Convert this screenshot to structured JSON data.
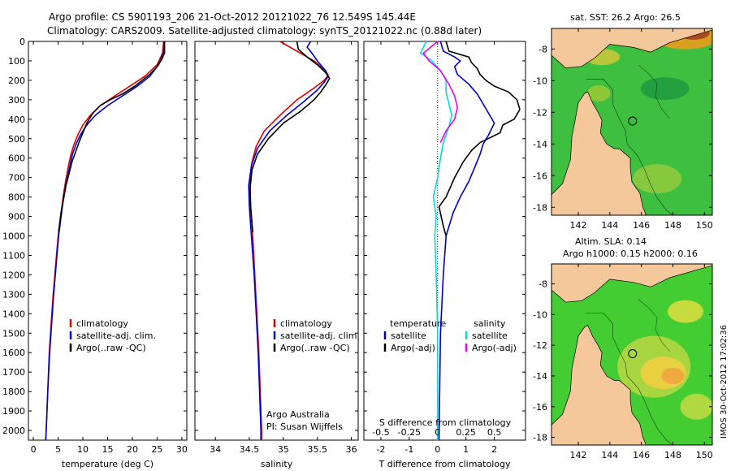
{
  "title_line1": "Argo profile: CS 5901193_206 21-Oct-2012 20121022_76 12.549S 145.44E",
  "title_line2": "Climatology: CARS2009. Satellite-adjusted climatology: synTS_20121022.nc (0.88d later)",
  "timestamp": "IMOS 30-Oct-2012 17:02:36",
  "colors": {
    "climatology": "#dd0000",
    "satellite": "#0000cc",
    "argo": "#000000",
    "sat_salinity": "#00dddd",
    "argo_salinity": "#ee00ee",
    "land": "#f5c89c",
    "sea": "#33cc33"
  },
  "chart_data": [
    {
      "type": "line",
      "id": "temperature",
      "xlabel": "temperature (deg C)",
      "xlim": [
        -1,
        31
      ],
      "xticks": [
        0,
        5,
        10,
        15,
        20,
        25,
        30
      ],
      "ylim": [
        0,
        2050
      ],
      "yticks": [
        0,
        100,
        200,
        300,
        400,
        500,
        600,
        700,
        800,
        900,
        1000,
        1100,
        1200,
        1300,
        1400,
        1500,
        1600,
        1700,
        1800,
        1900,
        2000
      ],
      "legend": [
        "climatology",
        "satellite-adj. clim.",
        "Argo(..raw -QC)"
      ],
      "series": [
        {
          "name": "climatology",
          "color": "#dd0000",
          "points": [
            [
              26.3,
              0
            ],
            [
              26.1,
              60
            ],
            [
              25.0,
              120
            ],
            [
              22.5,
              180
            ],
            [
              19.5,
              230
            ],
            [
              16.5,
              280
            ],
            [
              13.5,
              330
            ],
            [
              11.5,
              380
            ],
            [
              10.0,
              430
            ],
            [
              9.0,
              480
            ],
            [
              8.2,
              530
            ],
            [
              7.6,
              580
            ],
            [
              7.0,
              650
            ],
            [
              6.5,
              720
            ],
            [
              6.0,
              800
            ],
            [
              5.5,
              900
            ],
            [
              5.0,
              1000
            ],
            [
              4.5,
              1150
            ],
            [
              4.0,
              1300
            ],
            [
              3.6,
              1450
            ],
            [
              3.2,
              1600
            ],
            [
              2.9,
              1800
            ],
            [
              2.6,
              2000
            ],
            [
              2.5,
              2050
            ]
          ]
        },
        {
          "name": "satellite-adj. clim.",
          "color": "#0000cc",
          "points": [
            [
              26.4,
              0
            ],
            [
              26.3,
              60
            ],
            [
              25.3,
              120
            ],
            [
              23.5,
              180
            ],
            [
              21.0,
              230
            ],
            [
              18.0,
              280
            ],
            [
              15.0,
              330
            ],
            [
              12.5,
              380
            ],
            [
              10.8,
              430
            ],
            [
              9.5,
              480
            ],
            [
              8.6,
              530
            ],
            [
              7.9,
              580
            ],
            [
              7.3,
              650
            ],
            [
              6.7,
              720
            ],
            [
              6.1,
              800
            ],
            [
              5.6,
              900
            ],
            [
              5.1,
              1000
            ],
            [
              4.6,
              1150
            ],
            [
              4.1,
              1300
            ],
            [
              3.7,
              1450
            ],
            [
              3.3,
              1600
            ],
            [
              2.9,
              1800
            ],
            [
              2.6,
              2000
            ],
            [
              2.5,
              2050
            ]
          ]
        },
        {
          "name": "Argo(..raw -QC)",
          "color": "#000000",
          "points": [
            [
              26.5,
              0
            ],
            [
              26.5,
              60
            ],
            [
              26.3,
              70
            ],
            [
              26.0,
              90
            ],
            [
              25.0,
              130
            ],
            [
              23.5,
              170
            ],
            [
              22.0,
              200
            ],
            [
              20.5,
              230
            ],
            [
              18.0,
              270
            ],
            [
              15.5,
              300
            ],
            [
              13.5,
              330
            ],
            [
              12.0,
              370
            ],
            [
              10.8,
              420
            ],
            [
              10.0,
              470
            ],
            [
              9.2,
              520
            ],
            [
              8.5,
              570
            ],
            [
              7.8,
              620
            ],
            [
              7.2,
              680
            ],
            [
              6.6,
              740
            ],
            [
              6.1,
              810
            ],
            [
              5.6,
              880
            ],
            [
              5.1,
              980
            ]
          ]
        }
      ]
    },
    {
      "type": "line",
      "id": "salinity",
      "xlabel": "salinity",
      "xlim": [
        33.7,
        36.1
      ],
      "xticks": [
        34,
        34.5,
        35,
        35.5,
        36
      ],
      "ylim": [
        0,
        2050
      ],
      "legend": [
        "climatology",
        "satellite-adj. clim.",
        "Argo(..raw -QC)"
      ],
      "annotation": [
        "Argo Australia",
        "PI: Susan Wijffels"
      ],
      "series": [
        {
          "name": "climatology",
          "color": "#dd0000",
          "points": [
            [
              34.95,
              0
            ],
            [
              35.2,
              50
            ],
            [
              35.45,
              100
            ],
            [
              35.62,
              150
            ],
            [
              35.66,
              175
            ],
            [
              35.6,
              200
            ],
            [
              35.45,
              240
            ],
            [
              35.2,
              300
            ],
            [
              34.95,
              380
            ],
            [
              34.72,
              460
            ],
            [
              34.6,
              540
            ],
            [
              34.54,
              620
            ],
            [
              34.51,
              720
            ],
            [
              34.52,
              850
            ],
            [
              34.55,
              1000
            ],
            [
              34.58,
              1200
            ],
            [
              34.61,
              1400
            ],
            [
              34.64,
              1600
            ],
            [
              34.66,
              1800
            ],
            [
              34.68,
              2000
            ],
            [
              34.68,
              2050
            ]
          ]
        },
        {
          "name": "satellite-adj. clim.",
          "color": "#0000cc",
          "points": [
            [
              35.4,
              0
            ],
            [
              35.35,
              30
            ],
            [
              35.42,
              60
            ],
            [
              35.5,
              100
            ],
            [
              35.62,
              150
            ],
            [
              35.66,
              180
            ],
            [
              35.6,
              210
            ],
            [
              35.5,
              250
            ],
            [
              35.3,
              310
            ],
            [
              35.05,
              380
            ],
            [
              34.8,
              460
            ],
            [
              34.62,
              550
            ],
            [
              34.53,
              640
            ],
            [
              34.49,
              740
            ],
            [
              34.5,
              850
            ],
            [
              34.53,
              1000
            ],
            [
              34.57,
              1200
            ],
            [
              34.6,
              1400
            ],
            [
              34.63,
              1600
            ],
            [
              34.65,
              1800
            ],
            [
              34.67,
              2000
            ],
            [
              34.67,
              2050
            ]
          ]
        },
        {
          "name": "Argo(..raw -QC)",
          "color": "#000000",
          "points": [
            [
              35.2,
              0
            ],
            [
              35.22,
              40
            ],
            [
              35.35,
              80
            ],
            [
              35.5,
              120
            ],
            [
              35.62,
              160
            ],
            [
              35.68,
              190
            ],
            [
              35.63,
              220
            ],
            [
              35.55,
              260
            ],
            [
              35.45,
              300
            ],
            [
              35.25,
              360
            ],
            [
              35.0,
              420
            ],
            [
              34.78,
              500
            ],
            [
              34.62,
              580
            ],
            [
              34.54,
              660
            ],
            [
              34.51,
              760
            ],
            [
              34.52,
              860
            ],
            [
              34.55,
              980
            ]
          ]
        }
      ]
    },
    {
      "type": "line",
      "id": "difference",
      "xlabel": "T difference from climatology",
      "xlabel2": "S difference from climatology",
      "xlim": [
        -2.6,
        3.1
      ],
      "xticks": [
        -2,
        -1,
        0,
        1,
        2
      ],
      "xticks2": [
        -0.5,
        -0.25,
        0,
        0.25,
        0.5
      ],
      "ylim": [
        0,
        2050
      ],
      "legend_left_title": "temperature",
      "legend_right_title": "salinity",
      "legend_left": [
        "satellite",
        "Argo(-adj)"
      ],
      "legend_right": [
        "satellite",
        "Argo(-adj)"
      ],
      "series": [
        {
          "name": "satellite",
          "color": "#0000cc",
          "points": [
            [
              0.1,
              0
            ],
            [
              0.2,
              50
            ],
            [
              0.6,
              80
            ],
            [
              0.8,
              100
            ],
            [
              0.6,
              130
            ],
            [
              0.7,
              170
            ],
            [
              1.1,
              220
            ],
            [
              1.4,
              270
            ],
            [
              1.6,
              320
            ],
            [
              1.8,
              370
            ],
            [
              2.0,
              420
            ],
            [
              1.8,
              480
            ],
            [
              1.6,
              530
            ],
            [
              1.5,
              580
            ],
            [
              1.3,
              650
            ],
            [
              1.1,
              720
            ],
            [
              0.8,
              800
            ],
            [
              0.55,
              880
            ],
            [
              0.3,
              1000
            ],
            [
              0.2,
              1200
            ],
            [
              0.1,
              1500
            ],
            [
              0.05,
              2050
            ]
          ]
        },
        {
          "name": "Argo(-adj)",
          "color": "#000000",
          "points": [
            [
              0.3,
              0
            ],
            [
              0.4,
              50
            ],
            [
              1.1,
              80
            ],
            [
              1.2,
              110
            ],
            [
              1.4,
              140
            ],
            [
              1.5,
              170
            ],
            [
              1.7,
              200
            ],
            [
              2.0,
              230
            ],
            [
              2.5,
              260
            ],
            [
              2.8,
              300
            ],
            [
              2.9,
              350
            ],
            [
              2.7,
              400
            ],
            [
              2.3,
              430
            ],
            [
              2.2,
              470
            ],
            [
              1.5,
              520
            ],
            [
              1.2,
              560
            ],
            [
              0.9,
              620
            ],
            [
              0.6,
              700
            ],
            [
              0.3,
              800
            ],
            [
              0.05,
              850
            ],
            [
              0.2,
              950
            ],
            [
              0.3,
              1000
            ]
          ]
        },
        {
          "name": "satellite",
          "color": "#00dddd",
          "points": [
            [
              -0.4,
              0
            ],
            [
              -0.6,
              60
            ],
            [
              -0.2,
              100
            ],
            [
              0.1,
              150
            ],
            [
              0.3,
              200
            ],
            [
              0.3,
              260
            ],
            [
              0.4,
              320
            ],
            [
              0.5,
              380
            ],
            [
              0.4,
              440
            ],
            [
              0.2,
              520
            ],
            [
              0.1,
              600
            ],
            [
              0.0,
              700
            ],
            [
              -0.15,
              800
            ],
            [
              -0.05,
              900
            ],
            [
              -0.1,
              1000
            ],
            [
              -0.05,
              1200
            ],
            [
              0.0,
              1500
            ],
            [
              0.0,
              2050
            ]
          ]
        },
        {
          "name": "Argo(-adj)",
          "color": "#ee00ee",
          "points": [
            [
              0.0,
              0
            ],
            [
              -0.5,
              60
            ],
            [
              -0.3,
              100
            ],
            [
              0.1,
              150
            ],
            [
              0.4,
              220
            ],
            [
              0.6,
              280
            ],
            [
              0.7,
              340
            ],
            [
              0.6,
              400
            ],
            [
              0.3,
              460
            ],
            [
              0.1,
              520
            ]
          ]
        }
      ]
    },
    {
      "type": "heatmap",
      "id": "sst_map",
      "title": "sat. SST: 26.2 Argo: 26.5",
      "xticks": [
        142,
        144,
        146,
        148,
        150
      ],
      "yticks": [
        -8,
        -10,
        -12,
        -14,
        -16,
        -18
      ],
      "xlim": [
        140.3,
        150.5
      ],
      "ylim": [
        -18.5,
        -6.7
      ]
    },
    {
      "type": "heatmap",
      "id": "sla_map",
      "title": "Altim. SLA: 0.14",
      "subtitle": "Argo h1000: 0.15 h2000: 0.16",
      "xticks": [
        142,
        144,
        146,
        148,
        150
      ],
      "yticks": [
        -8,
        -10,
        -12,
        -14,
        -16,
        -18
      ],
      "xlim": [
        140.3,
        150.5
      ],
      "ylim": [
        -18.5,
        -6.7
      ]
    }
  ]
}
